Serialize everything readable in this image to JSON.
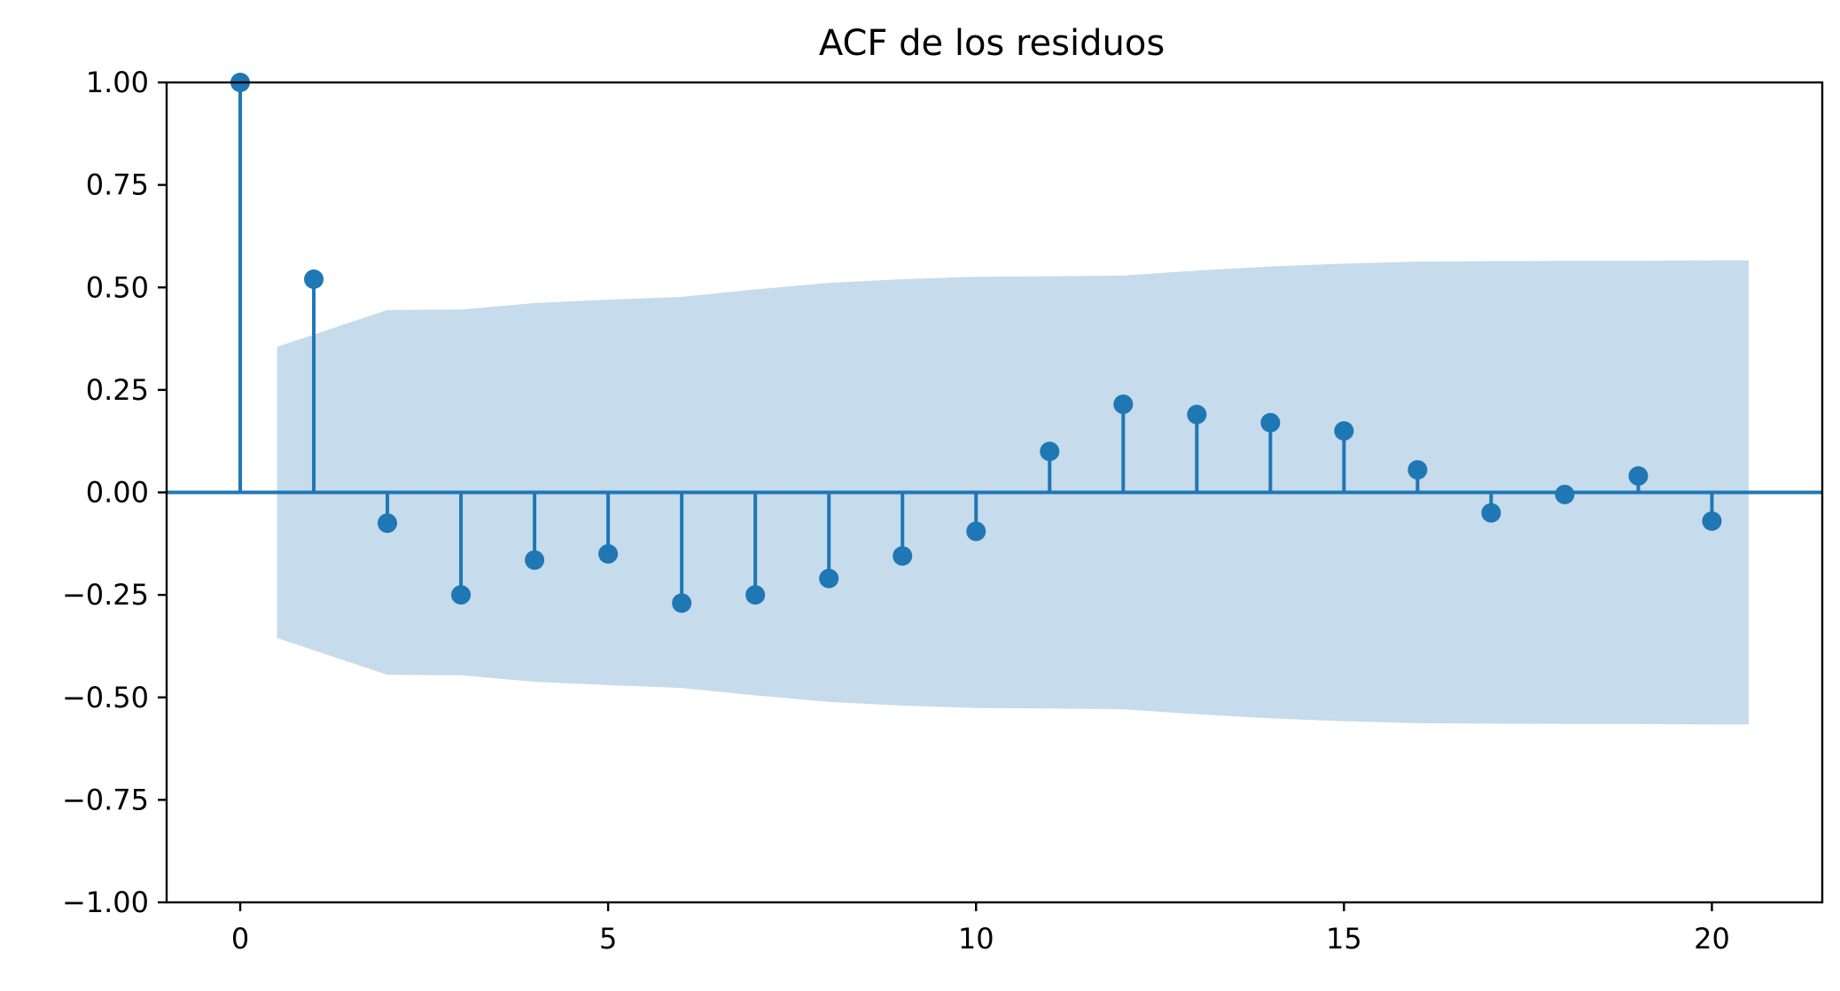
{
  "chart_data": {
    "type": "stem",
    "title": "ACF de los residuos",
    "xlabel": "",
    "ylabel": "",
    "xlim": [
      -1.0,
      21.5
    ],
    "ylim": [
      -1.0,
      1.0
    ],
    "xticks": [
      0,
      5,
      10,
      15,
      20
    ],
    "xtick_labels": [
      "0",
      "5",
      "10",
      "15",
      "20"
    ],
    "yticks": [
      1.0,
      0.75,
      0.5,
      0.25,
      0.0,
      -0.25,
      -0.5,
      -0.75,
      -1.0
    ],
    "ytick_labels": [
      "1.00",
      "0.75",
      "0.50",
      "0.25",
      "0.00",
      "−0.25",
      "−0.50",
      "−0.75",
      "−1.00"
    ],
    "grid": false,
    "series": [
      {
        "lags": [
          0,
          1,
          2,
          3,
          4,
          5,
          6,
          7,
          8,
          9,
          10,
          11,
          12,
          13,
          14,
          15,
          16,
          17,
          18,
          19,
          20
        ],
        "values": [
          1.0,
          0.52,
          -0.075,
          -0.25,
          -0.165,
          -0.15,
          -0.27,
          -0.25,
          -0.21,
          -0.155,
          -0.095,
          0.1,
          0.215,
          0.19,
          0.17,
          0.15,
          0.055,
          -0.05,
          -0.005,
          0.04,
          -0.07
        ]
      }
    ],
    "confidence_band": {
      "x": [
        0.5,
        2,
        3,
        4,
        5,
        6,
        7,
        8,
        9,
        10,
        11,
        12,
        13,
        14,
        15,
        16,
        17,
        18,
        19,
        20,
        20.5
      ],
      "upper": [
        0.355,
        0.445,
        0.446,
        0.462,
        0.47,
        0.477,
        0.495,
        0.511,
        0.52,
        0.526,
        0.527,
        0.529,
        0.541,
        0.551,
        0.558,
        0.563,
        0.564,
        0.565,
        0.565,
        0.566,
        0.566
      ],
      "lower": [
        -0.355,
        -0.445,
        -0.446,
        -0.462,
        -0.47,
        -0.477,
        -0.495,
        -0.511,
        -0.52,
        -0.526,
        -0.527,
        -0.529,
        -0.541,
        -0.551,
        -0.558,
        -0.563,
        -0.564,
        -0.565,
        -0.565,
        -0.566,
        -0.566
      ]
    },
    "colors": {
      "stem": "#1f77b4",
      "band": "#c6dbeb",
      "axes": "#000000"
    }
  }
}
